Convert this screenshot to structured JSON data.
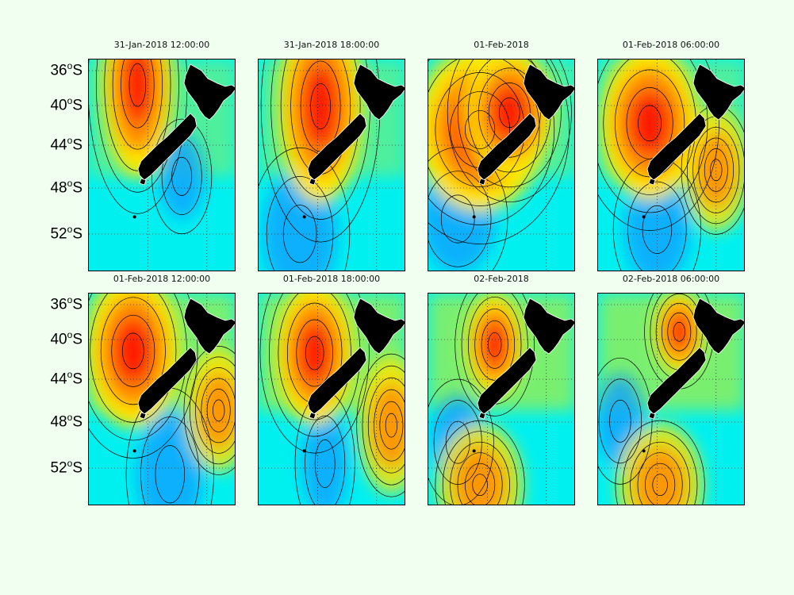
{
  "panels": [
    {
      "title": "31-Jan-2018 12:00:00",
      "hot": [
        [
          0.33,
          0.12,
          0.2,
          0.36
        ]
      ],
      "cold": [
        [
          0.63,
          0.55,
          0.15,
          0.2
        ]
      ]
    },
    {
      "title": "31-Jan-2018 18:00:00",
      "hot": [
        [
          0.42,
          0.22,
          0.24,
          0.38
        ]
      ],
      "cold": [
        [
          0.28,
          0.82,
          0.25,
          0.3
        ]
      ]
    },
    {
      "title": "01-Feb-2018",
      "hot": [
        [
          0.35,
          0.33,
          0.36,
          0.32
        ],
        [
          0.55,
          0.25,
          0.25,
          0.25
        ]
      ],
      "cold": [
        [
          0.2,
          0.75,
          0.25,
          0.25
        ]
      ]
    },
    {
      "title": "01-Feb-2018 06:00:00",
      "hot": [
        [
          0.35,
          0.3,
          0.28,
          0.3
        ]
      ],
      "cold": [
        [
          0.4,
          0.8,
          0.22,
          0.25
        ]
      ],
      "warm2": [
        [
          0.8,
          0.52,
          0.14,
          0.18
        ]
      ]
    },
    {
      "title": "01-Feb-2018 12:00:00",
      "hot": [
        [
          0.3,
          0.27,
          0.26,
          0.3
        ]
      ],
      "cold": [
        [
          0.55,
          0.85,
          0.22,
          0.3
        ]
      ],
      "warm2": [
        [
          0.88,
          0.55,
          0.14,
          0.18
        ]
      ]
    },
    {
      "title": "01-Feb-2018 18:00:00",
      "hot": [
        [
          0.38,
          0.28,
          0.22,
          0.28
        ]
      ],
      "cold": [
        [
          0.45,
          0.8,
          0.15,
          0.25
        ]
      ],
      "warm2": [
        [
          0.9,
          0.62,
          0.14,
          0.2
        ]
      ]
    },
    {
      "title": "02-Feb-2018",
      "hot": [
        [
          0.45,
          0.24,
          0.16,
          0.2
        ]
      ],
      "cold": [
        [
          0.2,
          0.7,
          0.18,
          0.22
        ]
      ],
      "warm2": [
        [
          0.35,
          0.9,
          0.18,
          0.18
        ]
      ]
    },
    {
      "title": "02-Feb-2018 06:00:00",
      "hot": [
        [
          0.55,
          0.18,
          0.14,
          0.16
        ]
      ],
      "cold": [
        [
          0.15,
          0.6,
          0.16,
          0.22
        ]
      ],
      "warm2": [
        [
          0.42,
          0.9,
          0.18,
          0.18
        ]
      ]
    }
  ],
  "yticks": [
    "36",
    "40",
    "44",
    "48",
    "52"
  ],
  "ytick_suffix": "S",
  "colors": {
    "background": "#f0fff0",
    "land": "#000000",
    "hot": "#ff1e00",
    "orange": "#ff8a00",
    "yellow": "#ffe800",
    "green": "#8fef5a",
    "cyan": "#00f0f0",
    "blue": "#0aa0ff",
    "deepblue": "#0055d8"
  }
}
